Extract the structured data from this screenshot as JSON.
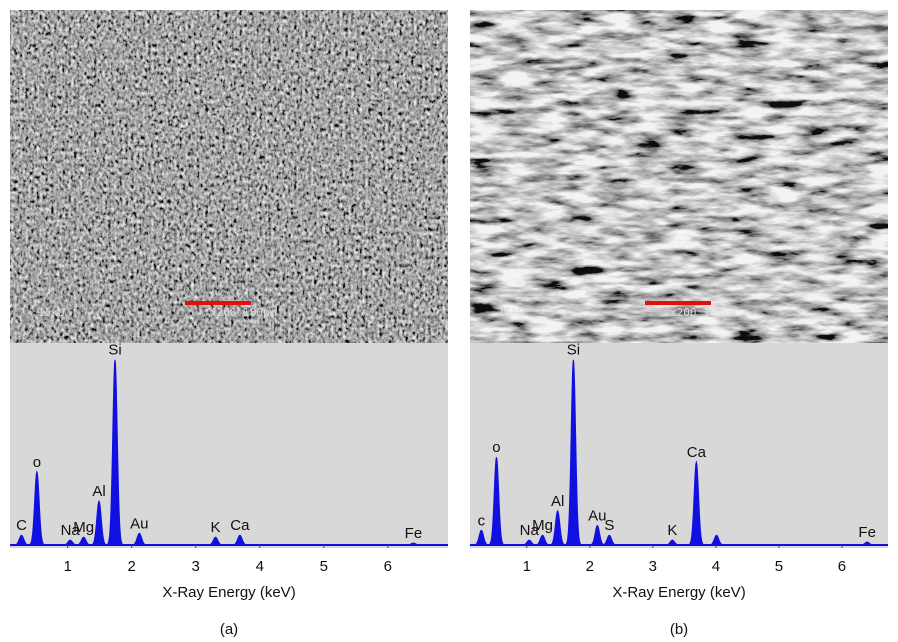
{
  "chart_data": [
    {
      "type": "spectrum",
      "x_label": "X-Ray Energy (keV)",
      "panel_label": "(a)",
      "image_text": [
        "15kU",
        "x200 100μm"
      ],
      "categories": [
        "C",
        "o",
        "Na",
        "Mg",
        "Al",
        "Si",
        "Au",
        "K",
        "Ca",
        "Fe"
      ],
      "x": [
        0.28,
        0.52,
        1.04,
        1.25,
        1.49,
        1.74,
        2.12,
        3.31,
        3.69,
        6.4
      ],
      "values": [
        10,
        75,
        5,
        8,
        45,
        190,
        12,
        8,
        10,
        2
      ],
      "color": "#1010e0",
      "xlim": [
        0.1,
        6.94
      ],
      "ylim": [
        0,
        200
      ],
      "xticks": [
        1,
        2,
        3,
        4,
        5,
        6
      ]
    },
    {
      "type": "spectrum",
      "x_label": "X-Ray Energy (keV)",
      "panel_label": "(b)",
      "image_text": [
        "15kU",
        "x200 100μm"
      ],
      "categories": [
        "c",
        "o",
        "Na",
        "Mg",
        "Al",
        "Si",
        "Au",
        "S",
        "K",
        "Ca",
        null,
        "Fe"
      ],
      "x": [
        0.28,
        0.52,
        1.04,
        1.25,
        1.49,
        1.74,
        2.12,
        2.31,
        3.31,
        3.69,
        4.01,
        6.4
      ],
      "values": [
        15,
        90,
        5,
        10,
        35,
        190,
        20,
        10,
        5,
        85,
        10,
        3
      ],
      "color": "#1010e0",
      "xlim": [
        0.1,
        6.73
      ],
      "ylim": [
        0,
        200
      ],
      "xticks": [
        1,
        2,
        3,
        4,
        5,
        6
      ]
    }
  ]
}
